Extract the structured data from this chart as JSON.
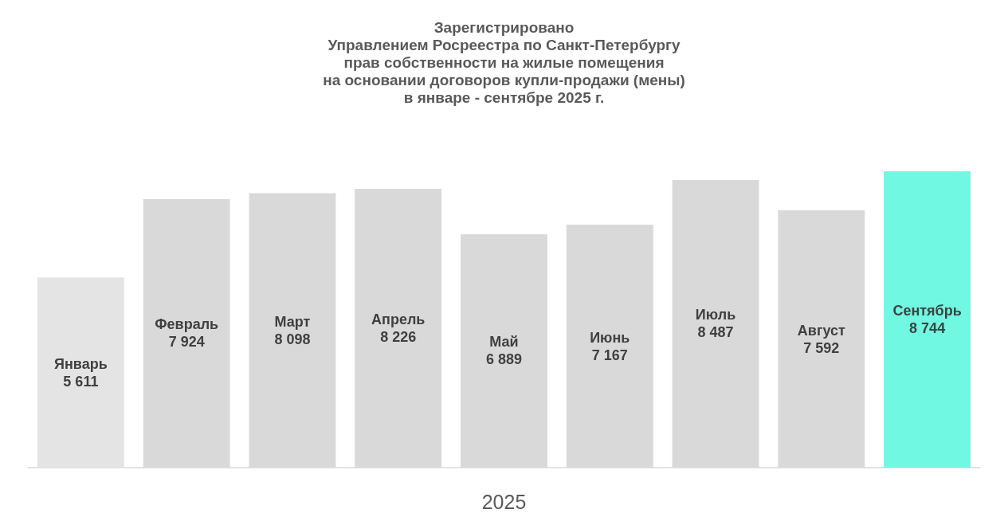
{
  "chart_data": {
    "type": "bar",
    "title": "Зарегистрировано\nУправлением Росреестра по Санкт-Петербургу\nправ собственности на жилые помещения\nна основании договоров купли-продажи (мены)\nв январе - сентябре 2025 г.",
    "xlabel": "2025",
    "categories": [
      "Январь",
      "Февраль",
      "Март",
      "Апрель",
      "Май",
      "Июнь",
      "Июль",
      "Август",
      "Сентябрь"
    ],
    "values": [
      5611,
      7924,
      8098,
      8226,
      6889,
      7167,
      8487,
      7592,
      8744
    ],
    "value_labels": [
      "5 611",
      "7 924",
      "8 098",
      "8 226",
      "6 889",
      "7 167",
      "8 487",
      "7 592",
      "8 744"
    ],
    "colors": [
      "#e4e4e4",
      "#d9d9d9",
      "#d9d9d9",
      "#d9d9d9",
      "#d9d9d9",
      "#d9d9d9",
      "#d9d9d9",
      "#d9d9d9",
      "#70f8e2"
    ],
    "grid": false
  }
}
